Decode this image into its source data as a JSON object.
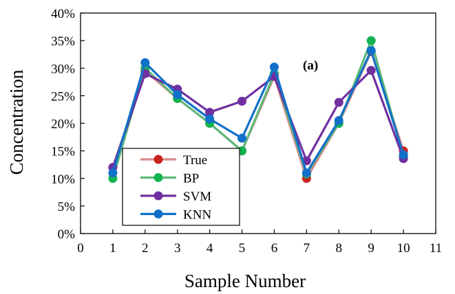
{
  "chart_data": {
    "type": "line",
    "title": "",
    "annotation": "(a)",
    "xlabel": "Sample Number",
    "ylabel": "Concentration",
    "xlim": [
      0,
      11
    ],
    "ylim": [
      0,
      40
    ],
    "x_ticks": [
      "0",
      "1",
      "2",
      "3",
      "4",
      "5",
      "6",
      "7",
      "8",
      "9",
      "10",
      "11"
    ],
    "y_ticks": [
      "0%",
      "5%",
      "10%",
      "15%",
      "20%",
      "25%",
      "30%",
      "35%",
      "40%"
    ],
    "x": [
      1,
      2,
      3,
      4,
      5,
      6,
      7,
      8,
      9,
      10
    ],
    "grid": false,
    "legend_position": "bottom-left",
    "series": [
      {
        "name": "True",
        "color": "#c8221f",
        "line_color": "#d9898a",
        "values": [
          12,
          29.5,
          24.5,
          20,
          15,
          28.5,
          10,
          20,
          33,
          15
        ]
      },
      {
        "name": "BP",
        "color": "#13b350",
        "line_color": "#5fb878",
        "values": [
          10,
          30,
          24.5,
          20,
          15,
          29,
          10.8,
          20,
          35,
          14
        ]
      },
      {
        "name": "SVM",
        "color": "#7030a0",
        "line_color": "#7030a0",
        "values": [
          12,
          29,
          26.2,
          22,
          24,
          28.5,
          13.2,
          23.8,
          29.6,
          13.6
        ]
      },
      {
        "name": "KNN",
        "color": "#1170c8",
        "line_color": "#1170c8",
        "values": [
          11,
          31,
          25.2,
          20.8,
          17.3,
          30.2,
          11,
          20.5,
          33.2,
          14.3
        ]
      }
    ]
  }
}
